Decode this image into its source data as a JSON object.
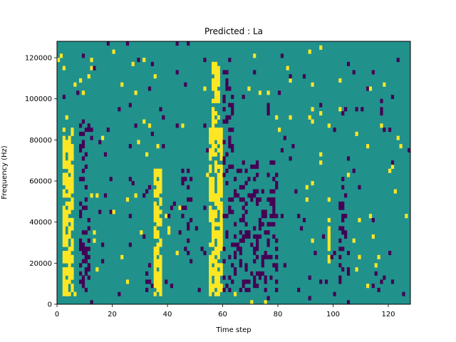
{
  "chart_data": {
    "type": "heatmap",
    "title": "Predicted : La",
    "xlabel": "Time step",
    "ylabel": "Frequency (Hz)",
    "xlim": [
      0,
      128
    ],
    "ylim": [
      0,
      128000
    ],
    "x_ticks": [
      0,
      20,
      40,
      60,
      80,
      100,
      120
    ],
    "y_ticks": [
      0,
      20000,
      40000,
      60000,
      80000,
      100000,
      120000
    ],
    "x_tick_labels": [
      "0",
      "20",
      "40",
      "60",
      "80",
      "100",
      "120"
    ],
    "y_tick_labels": [
      "0",
      "20000",
      "40000",
      "60000",
      "80000",
      "100000",
      "120000"
    ],
    "grid": false,
    "colormap": "viridis",
    "value_levels": [
      0,
      0.5,
      1
    ],
    "colors": {
      "low": "#440154",
      "mid": "#21918c",
      "high": "#fde725"
    },
    "n_columns": 128,
    "n_rows": 64,
    "background_value": 0.5,
    "bright_bands": [
      {
        "x_from": 2.0,
        "x_to": 6.0,
        "y_from": 4000,
        "y_to": 86000
      },
      {
        "x_from": 35.0,
        "x_to": 38.0,
        "y_from": 4000,
        "y_to": 66000
      },
      {
        "x_from": 55.0,
        "x_to": 60.0,
        "y_from": 4000,
        "y_to": 86000
      },
      {
        "x_from": 56.0,
        "x_to": 59.0,
        "y_from": 86000,
        "y_to": 118000
      },
      {
        "x_from": 98.0,
        "x_to": 99.0,
        "y_from": 20000,
        "y_to": 42000
      }
    ],
    "dark_bands": [
      {
        "x_from": 8.0,
        "x_to": 12.0,
        "y_from": 6000,
        "y_to": 90000
      },
      {
        "x_from": 32.0,
        "x_to": 36.0,
        "y_from": 6000,
        "y_to": 16000
      },
      {
        "x_from": 45.0,
        "x_to": 49.0,
        "y_from": 20000,
        "y_to": 66000
      },
      {
        "x_from": 60.0,
        "x_to": 64.0,
        "y_from": 6000,
        "y_to": 120000
      },
      {
        "x_from": 64.0,
        "x_to": 80.0,
        "y_from": 6000,
        "y_to": 70000
      },
      {
        "x_from": 102.0,
        "x_to": 106.0,
        "y_from": 8000,
        "y_to": 50000
      }
    ],
    "sparse_density": 0.035,
    "random_seed": 7
  }
}
